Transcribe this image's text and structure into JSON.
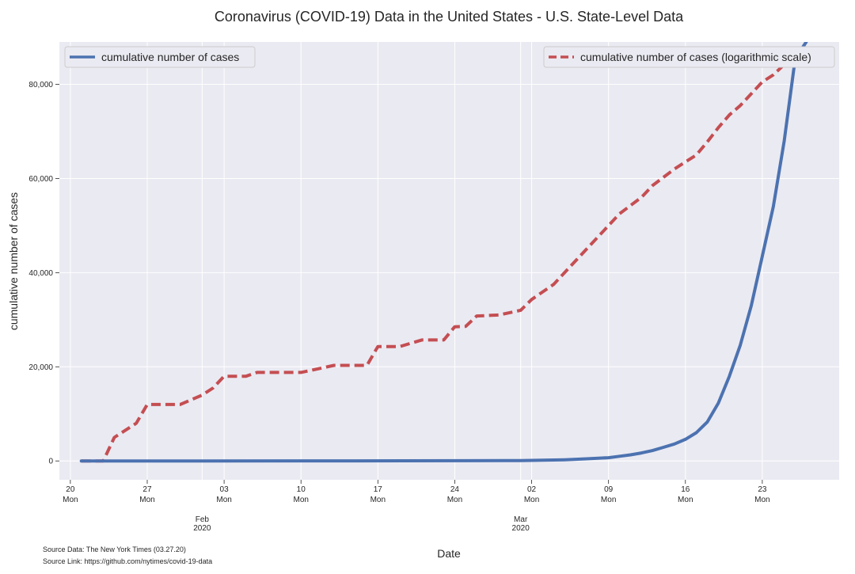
{
  "chart_data": {
    "type": "line",
    "title": "Coronavirus (COVID-19) Data in the United States -  U.S. State-Level Data",
    "xlabel": "Date",
    "ylabel": "cumulative number of cases",
    "xlim": [
      "2020-01-19",
      "2020-03-30"
    ],
    "ylim": [
      -4000,
      89000
    ],
    "grid": true,
    "legend": [
      {
        "name": "cumulative number of cases",
        "placement": "top-left"
      },
      {
        "name": "cumulative number of cases (logarithmic scale)",
        "placement": "top-right"
      }
    ],
    "y_ticks": [
      0,
      20000,
      40000,
      60000,
      80000
    ],
    "y_tick_labels": [
      "0",
      "20,000",
      "40,000",
      "60,000",
      "80,000"
    ],
    "x_ticks": [
      {
        "date": "2020-01-20",
        "day": "20",
        "weekday": "Mon"
      },
      {
        "date": "2020-01-27",
        "day": "27",
        "weekday": "Mon"
      },
      {
        "date": "2020-02-03",
        "day": "03",
        "weekday": "Mon"
      },
      {
        "date": "2020-02-10",
        "day": "10",
        "weekday": "Mon"
      },
      {
        "date": "2020-02-17",
        "day": "17",
        "weekday": "Mon"
      },
      {
        "date": "2020-02-24",
        "day": "24",
        "weekday": "Mon"
      },
      {
        "date": "2020-03-02",
        "day": "02",
        "weekday": "Mon"
      },
      {
        "date": "2020-03-09",
        "day": "09",
        "weekday": "Mon"
      },
      {
        "date": "2020-03-16",
        "day": "16",
        "weekday": "Mon"
      },
      {
        "date": "2020-03-23",
        "day": "23",
        "weekday": "Mon"
      }
    ],
    "month_ticks": [
      {
        "date": "2020-02-01",
        "month": "Feb",
        "year": "2020"
      },
      {
        "date": "2020-03-01",
        "month": "Mar",
        "year": "2020"
      }
    ],
    "series": [
      {
        "name": "cumulative number of cases",
        "color": "#4c72b0",
        "style": "solid",
        "x": [
          "2020-01-21",
          "2020-02-01",
          "2020-02-15",
          "2020-02-25",
          "2020-03-01",
          "2020-03-03",
          "2020-03-05",
          "2020-03-07",
          "2020-03-09",
          "2020-03-10",
          "2020-03-11",
          "2020-03-12",
          "2020-03-13",
          "2020-03-14",
          "2020-03-15",
          "2020-03-16",
          "2020-03-17",
          "2020-03-18",
          "2020-03-19",
          "2020-03-20",
          "2020-03-21",
          "2020-03-22",
          "2020-03-23",
          "2020-03-24",
          "2020-03-25",
          "2020-03-26",
          "2020-03-27"
        ],
        "values": [
          1,
          8,
          15,
          60,
          90,
          150,
          250,
          450,
          700,
          1000,
          1300,
          1700,
          2200,
          2900,
          3600,
          4600,
          6000,
          8300,
          12300,
          18000,
          24600,
          33000,
          43500,
          54000,
          68000,
          85500,
          89000
        ]
      },
      {
        "name": "cumulative number of cases (logarithmic scale)",
        "color": "#c44e52",
        "style": "dashed",
        "x": [
          "2020-01-21",
          "2020-01-22",
          "2020-01-23",
          "2020-01-24",
          "2020-01-26",
          "2020-01-27",
          "2020-01-29",
          "2020-01-30",
          "2020-02-01",
          "2020-02-02",
          "2020-02-03",
          "2020-02-04",
          "2020-02-05",
          "2020-02-06",
          "2020-02-10",
          "2020-02-11",
          "2020-02-13",
          "2020-02-16",
          "2020-02-17",
          "2020-02-19",
          "2020-02-21",
          "2020-02-23",
          "2020-02-24",
          "2020-02-25",
          "2020-02-26",
          "2020-02-28",
          "2020-03-01",
          "2020-03-02",
          "2020-03-04",
          "2020-03-07",
          "2020-03-09",
          "2020-03-10",
          "2020-03-12",
          "2020-03-13",
          "2020-03-15",
          "2020-03-17",
          "2020-03-18",
          "2020-03-19",
          "2020-03-20",
          "2020-03-21",
          "2020-03-22",
          "2020-03-23",
          "2020-03-24",
          "2020-03-25",
          "2020-03-26",
          "2020-03-27"
        ],
        "values": [
          0,
          0,
          0,
          5000,
          8000,
          12000,
          12000,
          12000,
          14000,
          15500,
          18000,
          18000,
          18000,
          18800,
          18800,
          19300,
          20300,
          20300,
          24300,
          24300,
          25700,
          25700,
          28500,
          28600,
          30800,
          31000,
          32000,
          34300,
          37500,
          45000,
          50000,
          52500,
          56000,
          58500,
          62000,
          65000,
          67800,
          70800,
          73500,
          75500,
          78000,
          80500,
          82000,
          84200,
          86000,
          88500
        ]
      }
    ]
  },
  "source": {
    "data_label": "Source Data: The New York Times (03.27.20)",
    "link_label": "Source Link: https://github.com/nytimes/covid-19-data"
  }
}
